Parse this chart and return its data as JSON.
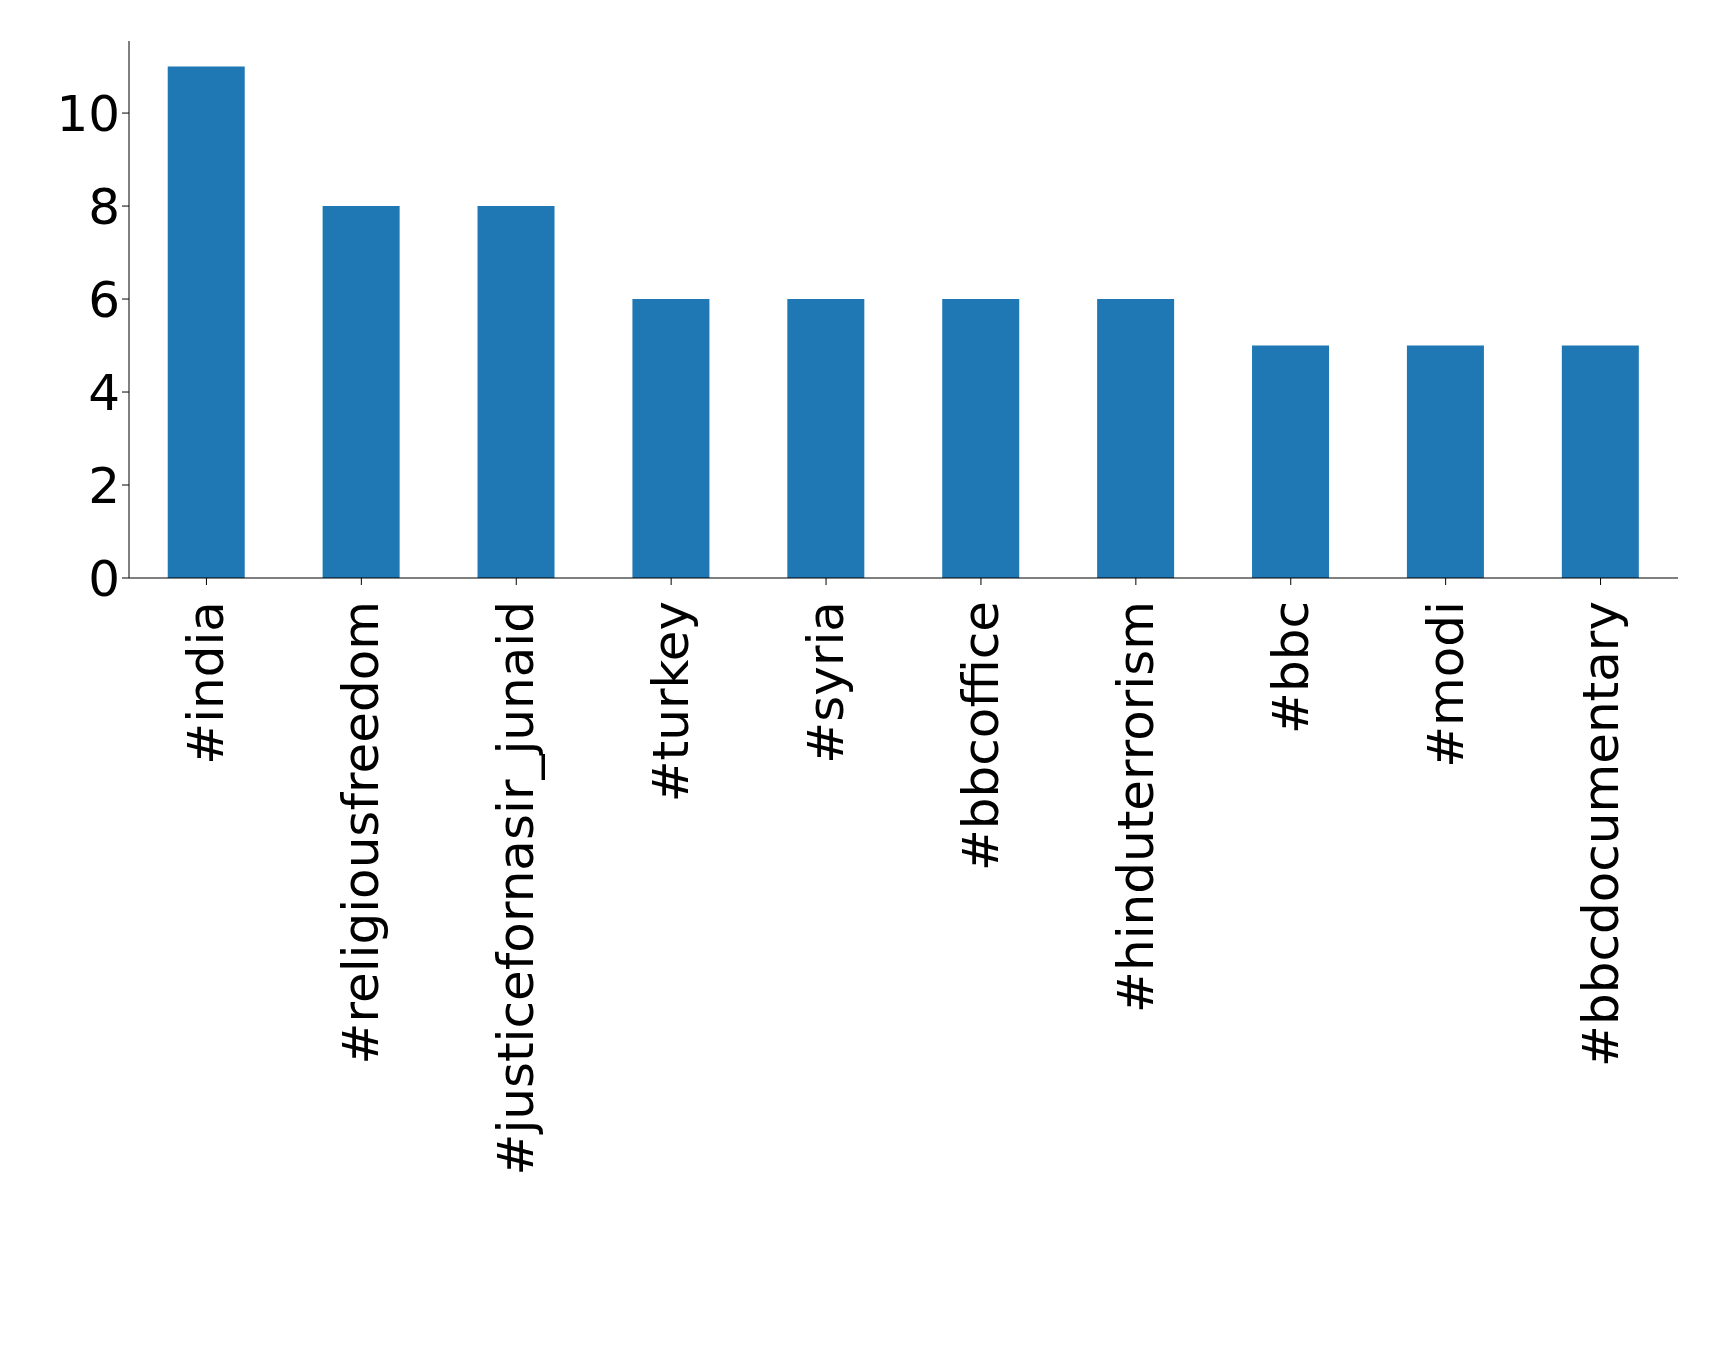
{
  "chart_data": {
    "type": "bar",
    "categories": [
      "#india",
      "#religiousfreedom",
      "#justicefornasir_junaid",
      "#turkey",
      "#syria",
      "#bbcoffice",
      "#hinduterrorism",
      "#bbc",
      "#modi",
      "#bbcdocumentary"
    ],
    "values": [
      11,
      8,
      8,
      6,
      6,
      6,
      6,
      5,
      5,
      5
    ],
    "color": "#1f77b4",
    "ylim": [
      0,
      11.55
    ],
    "yticks": [
      0,
      2,
      4,
      6,
      8,
      10
    ],
    "grid": false,
    "legend": false
  }
}
